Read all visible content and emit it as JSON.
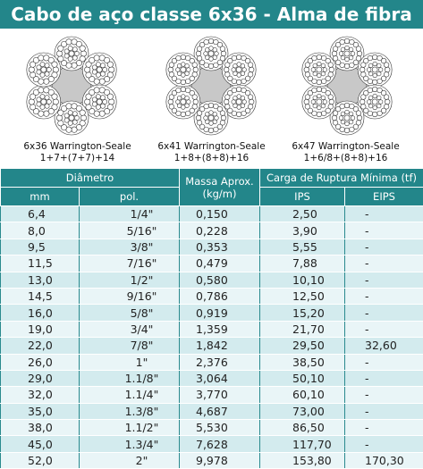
{
  "header": {
    "title": "Cabo de aço classe 6x36 - Alma de fibra"
  },
  "constructions": [
    {
      "name": "6x36 Warrington-Seale",
      "formula": "1+7+(7+7)+14"
    },
    {
      "name": "6x41 Warrington-Seale",
      "formula": "1+8+(8+8)+16"
    },
    {
      "name": "6x47 Warrington-Seale",
      "formula": "1+6/8+(8+8)+16"
    }
  ],
  "table": {
    "group_headers": {
      "diameter": "Diâmetro",
      "mass": "Massa Aprox.",
      "mass_unit": "(kg/m)",
      "load": "Carga de Ruptura Mínima (tf)"
    },
    "columns": [
      "mm",
      "pol.",
      "IPS",
      "EIPS"
    ],
    "rows": [
      [
        "6,4",
        "1/4\"",
        "0,150",
        "2,50",
        "-"
      ],
      [
        "8,0",
        "5/16\"",
        "0,228",
        "3,90",
        "-"
      ],
      [
        "9,5",
        "3/8\"",
        "0,353",
        "5,55",
        "-"
      ],
      [
        "11,5",
        "7/16\"",
        "0,479",
        "7,88",
        "-"
      ],
      [
        "13,0",
        "1/2\"",
        "0,580",
        "10,10",
        "-"
      ],
      [
        "14,5",
        "9/16\"",
        "0,786",
        "12,50",
        "-"
      ],
      [
        "16,0",
        "5/8\"",
        "0,919",
        "15,20",
        "-"
      ],
      [
        "19,0",
        "3/4\"",
        "1,359",
        "21,70",
        "-"
      ],
      [
        "22,0",
        "7/8\"",
        "1,842",
        "29,50",
        "32,60"
      ],
      [
        "26,0",
        "1\"",
        "2,376",
        "38,50",
        "-"
      ],
      [
        "29,0",
        "1.1/8\"",
        "3,064",
        "50,10",
        "-"
      ],
      [
        "32,0",
        "1.1/4\"",
        "3,770",
        "60,10",
        "-"
      ],
      [
        "35,0",
        "1.3/8\"",
        "4,687",
        "73,00",
        "-"
      ],
      [
        "38,0",
        "1.1/2\"",
        "5,530",
        "86,50",
        "-"
      ],
      [
        "45,0",
        "1.3/4\"",
        "7,628",
        "117,70",
        "-"
      ],
      [
        "52,0",
        "2\"",
        "9,978",
        "153,80",
        "170,30"
      ]
    ]
  }
}
